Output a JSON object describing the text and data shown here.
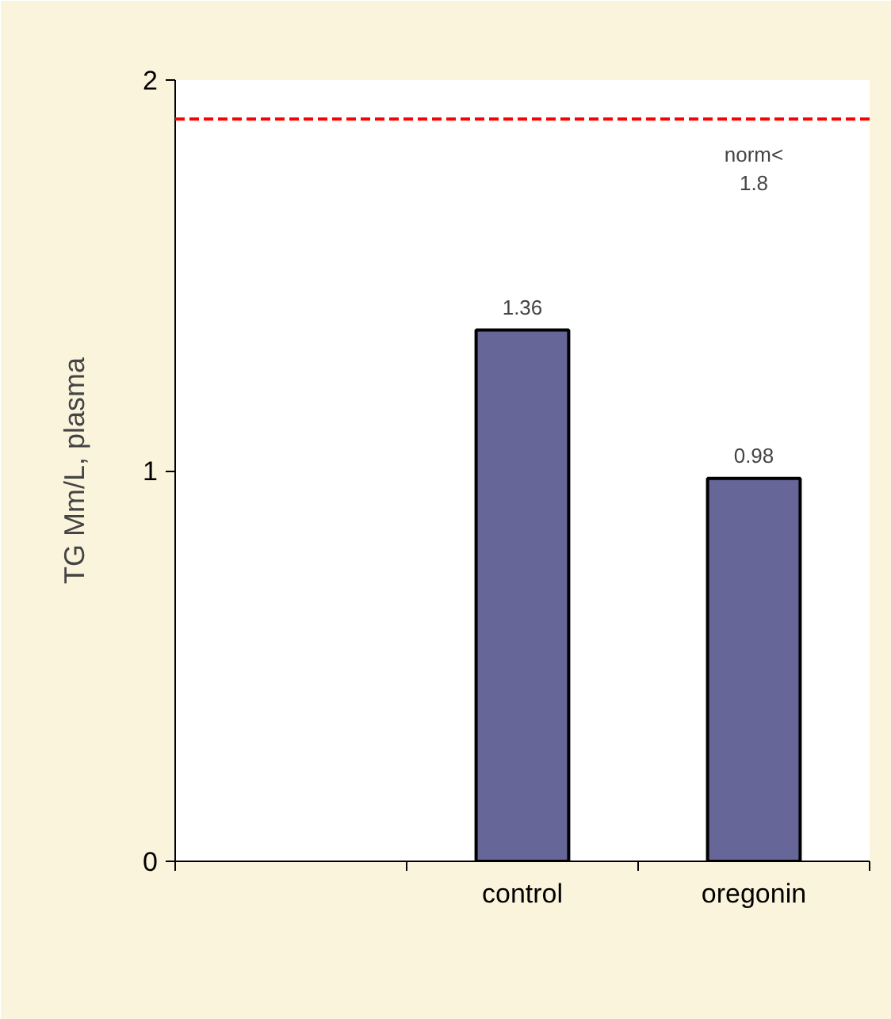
{
  "chart_data": {
    "type": "bar",
    "categories": [
      null,
      "control",
      "oregonin"
    ],
    "values": [
      null,
      1.36,
      0.98
    ],
    "color": "#666699",
    "ylabel": "TG Mm/L, plasma",
    "ylim": [
      0,
      2
    ],
    "yticks": [
      0,
      1,
      2
    ],
    "data_labels": true,
    "ref_lines": [
      {
        "axis": "y",
        "value": 1.9,
        "label": "norm<\n1.8",
        "color": "#ff0000",
        "line_style": "dashed"
      }
    ]
  }
}
